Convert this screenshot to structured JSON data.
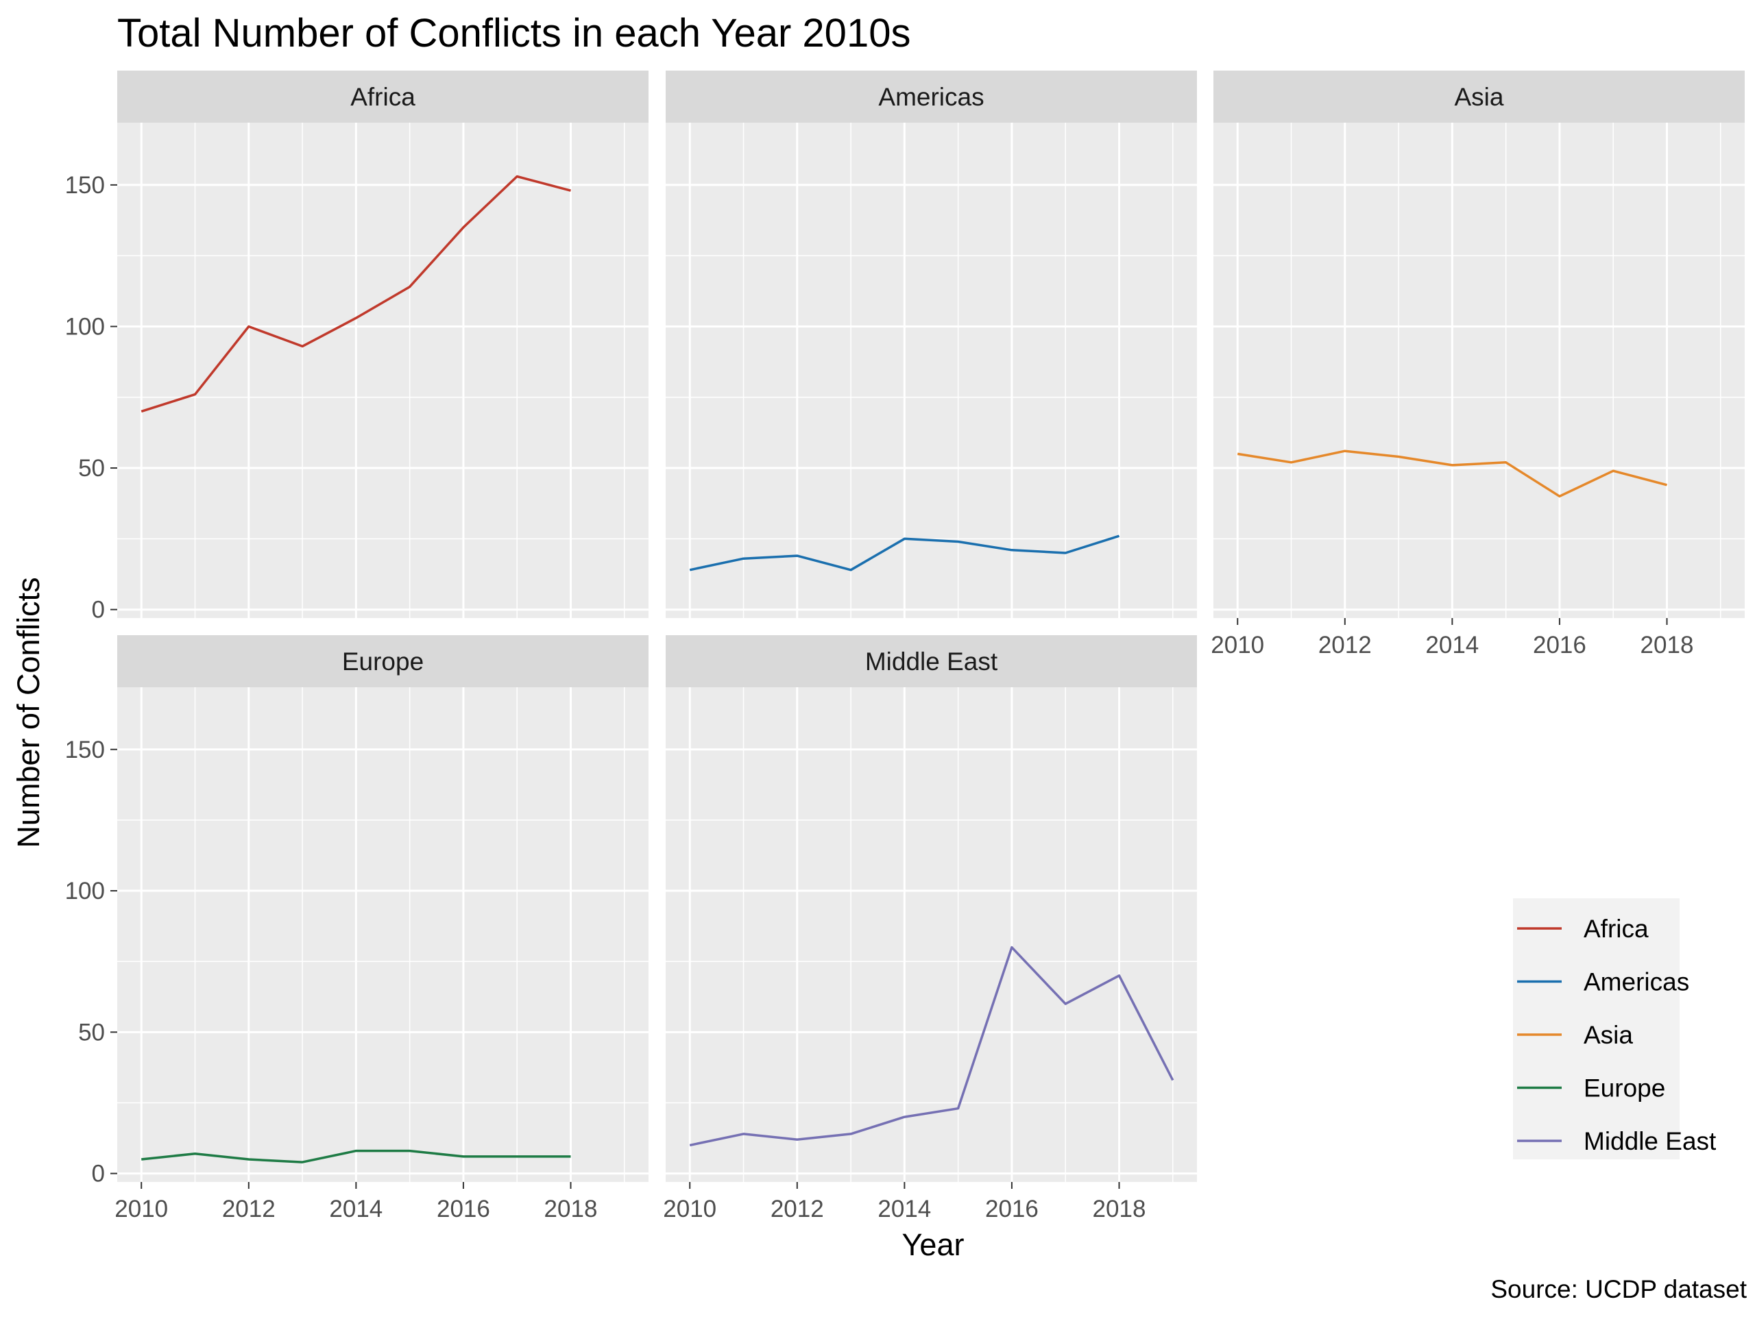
{
  "chart_data": {
    "type": "line",
    "title": "Total Number of Conflicts in each Year 2010s",
    "xlabel": "Year",
    "ylabel": "Number of Conflicts",
    "caption": "Source: UCDP dataset",
    "xlim": [
      2009.55,
      2019.45
    ],
    "ylim": [
      -3,
      172
    ],
    "x_ticks": [
      2010,
      2012,
      2014,
      2016,
      2018
    ],
    "y_ticks": [
      0,
      50,
      100,
      150
    ],
    "grid": true,
    "legend_position": "right",
    "facets": [
      "Africa",
      "Americas",
      "Asia",
      "Europe",
      "Middle East"
    ],
    "series": [
      {
        "name": "Africa",
        "color": "#C0392B",
        "x": [
          2010,
          2011,
          2012,
          2013,
          2014,
          2015,
          2016,
          2017,
          2018
        ],
        "values": [
          70,
          76,
          100,
          93,
          103,
          114,
          135,
          153,
          148
        ]
      },
      {
        "name": "Americas",
        "color": "#1A6FAE",
        "x": [
          2010,
          2011,
          2012,
          2013,
          2014,
          2015,
          2016,
          2017,
          2018
        ],
        "values": [
          14,
          18,
          19,
          14,
          25,
          24,
          21,
          20,
          26
        ]
      },
      {
        "name": "Asia",
        "color": "#E5882A",
        "x": [
          2010,
          2011,
          2012,
          2013,
          2014,
          2015,
          2016,
          2017,
          2018
        ],
        "values": [
          55,
          52,
          56,
          54,
          51,
          52,
          40,
          49,
          44
        ]
      },
      {
        "name": "Europe",
        "color": "#1E7B45",
        "x": [
          2010,
          2011,
          2012,
          2013,
          2014,
          2015,
          2016,
          2017,
          2018
        ],
        "values": [
          5,
          7,
          5,
          4,
          8,
          8,
          6,
          6,
          6
        ]
      },
      {
        "name": "Middle East",
        "color": "#7570B3",
        "x": [
          2010,
          2011,
          2012,
          2013,
          2014,
          2015,
          2016,
          2017,
          2018,
          2019
        ],
        "values": [
          10,
          14,
          12,
          14,
          20,
          23,
          80,
          60,
          70,
          33
        ]
      }
    ]
  }
}
